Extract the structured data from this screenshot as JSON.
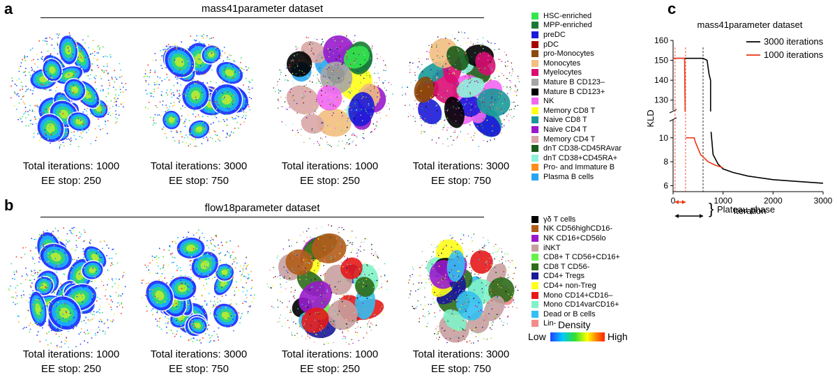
{
  "panels": {
    "a": {
      "letter": "a",
      "dataset_title": "mass41parameter dataset",
      "plots": [
        {
          "kind": "density",
          "line1": "Total iterations: 1000",
          "line2": "EE stop: 250"
        },
        {
          "kind": "density",
          "line1": "Total iterations: 3000",
          "line2": "EE stop: 750"
        },
        {
          "kind": "clusters",
          "line1": "Total iterations: 1000",
          "line2": "EE stop: 250"
        },
        {
          "kind": "clusters",
          "line1": "Total iterations: 3000",
          "line2": "EE stop: 750"
        }
      ],
      "legend": [
        {
          "label": "HSC-enriched",
          "color": "#33e64d"
        },
        {
          "label": "MPP-enriched",
          "color": "#1a7a33"
        },
        {
          "label": "preDC",
          "color": "#1a1ad9"
        },
        {
          "label": "pDC",
          "color": "#a60000"
        },
        {
          "label": "pro-Monocytes",
          "color": "#8c4a0d"
        },
        {
          "label": "Monocytes",
          "color": "#f2bf80"
        },
        {
          "label": "Myelocytes",
          "color": "#d90d73"
        },
        {
          "label": "Mature B CD123–",
          "color": "#a6a6a6"
        },
        {
          "label": "Mature B CD123+",
          "color": "#000000"
        },
        {
          "label": "NK",
          "color": "#f266f2"
        },
        {
          "label": "Memory CD8 T",
          "color": "#ffff1a"
        },
        {
          "label": "Naive CD8 T",
          "color": "#1a9999"
        },
        {
          "label": "Naive CD4 T",
          "color": "#9919cc"
        },
        {
          "label": "Memory CD4 T",
          "color": "#d9a6a6"
        },
        {
          "label": "dnT CD38-CD45RAvar",
          "color": "#1a5c1a"
        },
        {
          "label": "dnT CD38+CD45RA+",
          "color": "#8cf2d9"
        },
        {
          "label": "Pro- and Immature B",
          "color": "#ff8c1a"
        },
        {
          "label": "Plasma B cells",
          "color": "#26a6f2"
        }
      ]
    },
    "b": {
      "letter": "b",
      "dataset_title": "flow18parameter dataset",
      "plots": [
        {
          "kind": "density",
          "line1": "Total iterations: 1000",
          "line2": "EE stop: 250"
        },
        {
          "kind": "density",
          "line1": "Total iterations: 3000",
          "line2": "EE stop: 750"
        },
        {
          "kind": "clusters",
          "line1": "Total iterations: 1000",
          "line2": "EE stop: 250"
        },
        {
          "kind": "clusters",
          "line1": "Total iterations: 3000",
          "line2": "EE stop: 750"
        }
      ],
      "legend": [
        {
          "label": "γδ T cells",
          "color": "#000000"
        },
        {
          "label": "NK CD56highCD16-",
          "color": "#b35c1a"
        },
        {
          "label": "NK CD16+CD56lo",
          "color": "#9919cc"
        },
        {
          "label": "iNKT",
          "color": "#c8a0a0"
        },
        {
          "label": "CD8+ T CD56+CD16+",
          "color": "#66f24d"
        },
        {
          "label": "CD8 T CD56-",
          "color": "#2e6b1a"
        },
        {
          "label": "CD4+ Tregs",
          "color": "#1a1a99"
        },
        {
          "label": "CD4+ non-Treg",
          "color": "#ffff1a"
        },
        {
          "label": "Mono CD14+CD16–",
          "color": "#e61a1a"
        },
        {
          "label": "Mono CD14varCD16+",
          "color": "#80f2c8"
        },
        {
          "label": "Dead or B cells",
          "color": "#33bff2"
        },
        {
          "label": "Lin-",
          "color": "#f28c8c"
        }
      ],
      "density_bar": {
        "title": "Density",
        "low": "Low",
        "high": "High"
      }
    },
    "c": {
      "letter": "c",
      "chart_data": {
        "type": "line",
        "title": "mass41parameter dataset",
        "xlabel": "Iteration",
        "ylabel": "KLD",
        "xlim": [
          0,
          3000
        ],
        "xticks": [
          "0",
          "1000",
          "2000",
          "3000"
        ],
        "yticks_upper": [
          "130",
          "140",
          "150",
          "160"
        ],
        "yticks_lower": [
          "6",
          "8",
          "10"
        ],
        "y_axis_break": true,
        "series": [
          {
            "name": "3000 iterations",
            "color": "#000000",
            "x": [
              0,
              600,
              680,
              720,
              750,
              760,
              800,
              900,
              1000,
              1200,
              1500,
              2000,
              2500,
              3000
            ],
            "y": [
              151,
              151,
              150,
              143,
              140,
              10.5,
              8.6,
              7.8,
              7.4,
              7.1,
              6.8,
              6.5,
              6.35,
              6.2
            ]
          },
          {
            "name": "1000 iterations",
            "color": "#ee3311",
            "x": [
              0,
              230,
              240,
              250,
              420,
              450,
              550,
              700,
              850,
              1000
            ],
            "y": [
              151,
              151,
              127,
              10,
              10,
              9.6,
              8.6,
              8.0,
              7.7,
              7.5
            ]
          }
        ],
        "annotation": "Plateau phase"
      }
    }
  }
}
